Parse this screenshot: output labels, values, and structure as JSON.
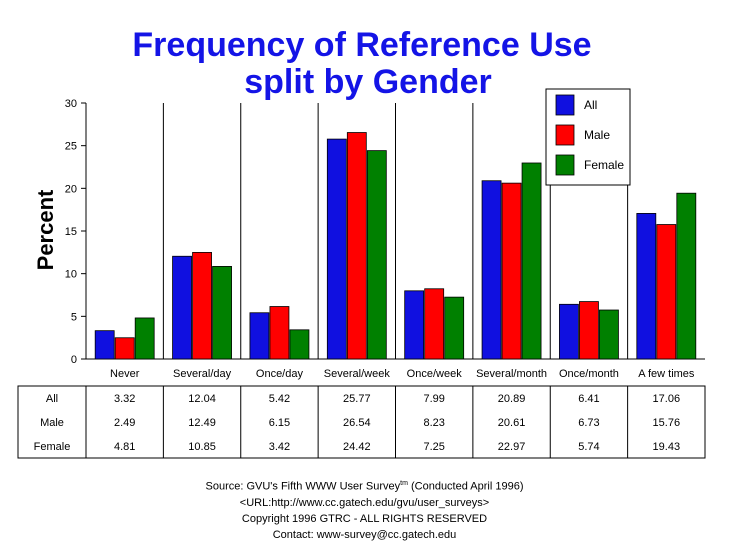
{
  "chart_data": {
    "type": "bar",
    "title": "Frequency of Reference Use",
    "subtitle": "split by Gender",
    "ylabel": "Percent",
    "xlabel": "",
    "ylim": [
      0,
      30
    ],
    "yticks": [
      0,
      5,
      10,
      15,
      20,
      25,
      30
    ],
    "categories": [
      "Never",
      "Several/day",
      "Once/day",
      "Several/week",
      "Once/week",
      "Several/month",
      "Once/month",
      "A few times"
    ],
    "series": [
      {
        "name": "All",
        "color": "#1010e0",
        "values": [
          3.32,
          12.04,
          5.42,
          25.77,
          7.99,
          20.89,
          6.41,
          17.06
        ],
        "labels": [
          "3.32",
          "12.04",
          "5.42",
          "25.77",
          "7.99",
          "20.89",
          "6.41",
          "17.06"
        ]
      },
      {
        "name": "Male",
        "color": "#ff0000",
        "values": [
          2.49,
          12.49,
          6.15,
          26.54,
          8.23,
          20.61,
          6.73,
          15.76
        ],
        "labels": [
          "2.49",
          "12.49",
          "6.15",
          "26.54",
          "8.23",
          "20.61",
          "6.73",
          "15.76"
        ]
      },
      {
        "name": "Female",
        "color": "#008000",
        "values": [
          4.81,
          10.85,
          3.42,
          24.42,
          7.25,
          22.97,
          5.74,
          19.43
        ],
        "labels": [
          "4.81",
          "10.85",
          "3.42",
          "24.42",
          "7.25",
          "22.97",
          "5.74",
          "19.43"
        ]
      }
    ],
    "legend_position": "top-right",
    "grid": "vertical category separators"
  },
  "source": {
    "line1_prefix": "Source: GVU's Fifth WWW User Survey",
    "line1_sup": "tm",
    "line1_suffix": "  (Conducted April 1996)",
    "line2": "<URL:http://www.cc.gatech.edu/gvu/user_surveys>",
    "line3": "Copyright 1996 GTRC -  ALL RIGHTS RESERVED",
    "line4": "Contact: www-survey@cc.gatech.edu"
  }
}
